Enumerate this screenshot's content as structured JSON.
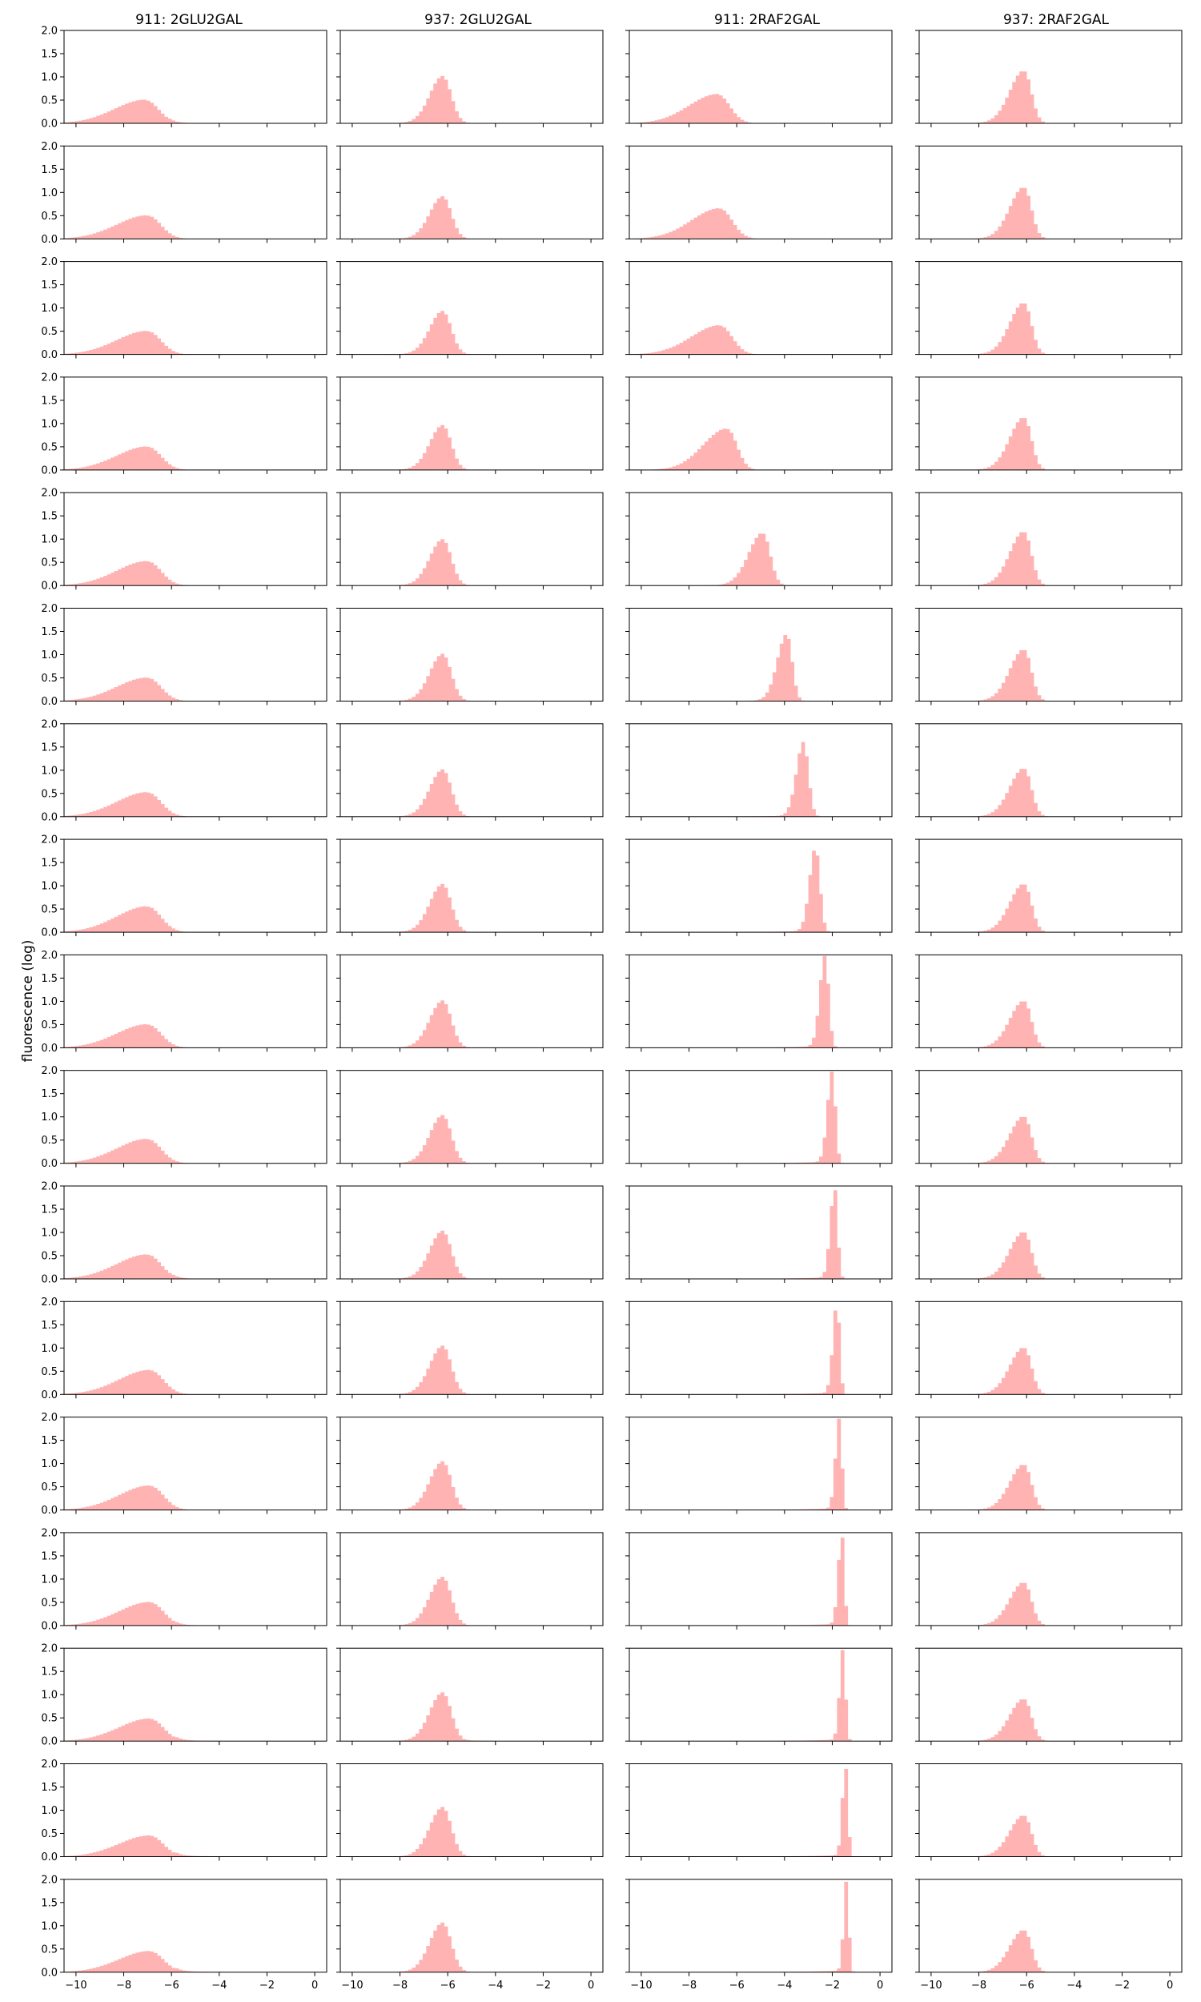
{
  "chart_data": {
    "type": "bar",
    "description_kind": "histogram grid",
    "rows": 17,
    "columns": [
      "911: 2GLU2GAL",
      "937: 2GLU2GAL",
      "911: 2RAF2GAL",
      "937: 2RAF2GAL"
    ],
    "ylabel": "fluorescence (log)",
    "xlim": [
      -10.5,
      0.5
    ],
    "ylim": [
      0,
      2.0
    ],
    "xticks": [
      -10,
      -8,
      -6,
      -4,
      -2,
      0
    ],
    "xtick_labels": [
      "−10",
      "−8",
      "−6",
      "−4",
      "−2",
      "0"
    ],
    "yticks": [
      0.0,
      0.5,
      1.0,
      1.5,
      2.0
    ],
    "ytick_labels": [
      "0.0",
      "0.5",
      "1.0",
      "1.5",
      "2.0"
    ],
    "bar_color": "#ffb3b3",
    "bin_width": 0.15,
    "distributions": [
      [
        {
          "mode": -7.1,
          "height": 0.5,
          "left": 1.3,
          "right": 0.55,
          "tail": 0.03
        },
        {
          "mode": -6.2,
          "height": 1.0,
          "left": 0.55,
          "right": 0.35,
          "tail": 0
        },
        {
          "mode": -6.8,
          "height": 0.62,
          "left": 1.2,
          "right": 0.5,
          "tail": 0
        },
        {
          "mode": -6.1,
          "height": 1.12,
          "left": 0.6,
          "right": 0.3,
          "tail": 0
        }
      ],
      [
        {
          "mode": -7.0,
          "height": 0.5,
          "left": 1.3,
          "right": 0.55,
          "tail": 0
        },
        {
          "mode": -6.2,
          "height": 0.9,
          "left": 0.55,
          "right": 0.35,
          "tail": 0
        },
        {
          "mode": -6.7,
          "height": 0.65,
          "left": 1.2,
          "right": 0.5,
          "tail": 0
        },
        {
          "mode": -6.1,
          "height": 1.1,
          "left": 0.6,
          "right": 0.3,
          "tail": 0
        }
      ],
      [
        {
          "mode": -7.0,
          "height": 0.5,
          "left": 1.3,
          "right": 0.55,
          "tail": 0
        },
        {
          "mode": -6.2,
          "height": 0.92,
          "left": 0.55,
          "right": 0.35,
          "tail": 0
        },
        {
          "mode": -6.7,
          "height": 0.62,
          "left": 1.2,
          "right": 0.5,
          "tail": 0
        },
        {
          "mode": -6.1,
          "height": 1.1,
          "left": 0.6,
          "right": 0.3,
          "tail": 0
        }
      ],
      [
        {
          "mode": -7.0,
          "height": 0.5,
          "left": 1.3,
          "right": 0.55,
          "tail": 0
        },
        {
          "mode": -6.2,
          "height": 0.95,
          "left": 0.55,
          "right": 0.35,
          "tail": 0
        },
        {
          "mode": -6.4,
          "height": 0.88,
          "left": 1.0,
          "right": 0.4,
          "tail": 0
        },
        {
          "mode": -6.1,
          "height": 1.12,
          "left": 0.6,
          "right": 0.3,
          "tail": 0
        }
      ],
      [
        {
          "mode": -7.0,
          "height": 0.52,
          "left": 1.3,
          "right": 0.55,
          "tail": 0
        },
        {
          "mode": -6.2,
          "height": 0.98,
          "left": 0.55,
          "right": 0.35,
          "tail": 0
        },
        {
          "mode": -4.9,
          "height": 1.12,
          "left": 0.6,
          "right": 0.3,
          "tail": 0
        },
        {
          "mode": -6.1,
          "height": 1.15,
          "left": 0.6,
          "right": 0.3,
          "tail": 0
        }
      ],
      [
        {
          "mode": -7.0,
          "height": 0.5,
          "left": 1.3,
          "right": 0.55,
          "tail": 0
        },
        {
          "mode": -6.2,
          "height": 1.0,
          "left": 0.55,
          "right": 0.35,
          "tail": 0
        },
        {
          "mode": -3.9,
          "height": 1.42,
          "left": 0.4,
          "right": 0.22,
          "tail": 0
        },
        {
          "mode": -6.1,
          "height": 1.1,
          "left": 0.6,
          "right": 0.3,
          "tail": 0
        }
      ],
      [
        {
          "mode": -7.0,
          "height": 0.52,
          "left": 1.3,
          "right": 0.55,
          "tail": 0
        },
        {
          "mode": -6.2,
          "height": 1.0,
          "left": 0.55,
          "right": 0.35,
          "tail": 0
        },
        {
          "mode": -3.2,
          "height": 1.58,
          "left": 0.3,
          "right": 0.2,
          "tail": 0
        },
        {
          "mode": -6.1,
          "height": 1.03,
          "left": 0.6,
          "right": 0.3,
          "tail": 0
        }
      ],
      [
        {
          "mode": -7.0,
          "height": 0.55,
          "left": 1.3,
          "right": 0.55,
          "tail": 0
        },
        {
          "mode": -6.2,
          "height": 1.02,
          "left": 0.55,
          "right": 0.35,
          "tail": 0
        },
        {
          "mode": -2.7,
          "height": 1.8,
          "left": 0.25,
          "right": 0.18,
          "tail": 0
        },
        {
          "mode": -6.1,
          "height": 1.03,
          "left": 0.6,
          "right": 0.3,
          "tail": 0
        }
      ],
      [
        {
          "mode": -7.0,
          "height": 0.5,
          "left": 1.3,
          "right": 0.55,
          "tail": 0
        },
        {
          "mode": -6.2,
          "height": 1.0,
          "left": 0.55,
          "right": 0.35,
          "tail": 0
        },
        {
          "mode": -2.3,
          "height": 1.95,
          "left": 0.22,
          "right": 0.15,
          "tail": 0
        },
        {
          "mode": -6.1,
          "height": 1.0,
          "left": 0.6,
          "right": 0.3,
          "tail": 0
        }
      ],
      [
        {
          "mode": -7.0,
          "height": 0.52,
          "left": 1.3,
          "right": 0.55,
          "tail": 0
        },
        {
          "mode": -6.2,
          "height": 1.02,
          "left": 0.55,
          "right": 0.35,
          "tail": 0
        },
        {
          "mode": -2.0,
          "height": 1.95,
          "left": 0.2,
          "right": 0.13,
          "tail": 0
        },
        {
          "mode": -6.1,
          "height": 1.0,
          "left": 0.6,
          "right": 0.3,
          "tail": 0
        }
      ],
      [
        {
          "mode": -7.0,
          "height": 0.52,
          "left": 1.3,
          "right": 0.55,
          "tail": 0.03
        },
        {
          "mode": -6.2,
          "height": 1.02,
          "left": 0.55,
          "right": 0.35,
          "tail": 0
        },
        {
          "mode": -1.9,
          "height": 1.95,
          "left": 0.18,
          "right": 0.12,
          "tail": 0
        },
        {
          "mode": -6.1,
          "height": 1.0,
          "left": 0.6,
          "right": 0.3,
          "tail": 0
        }
      ],
      [
        {
          "mode": -6.9,
          "height": 0.52,
          "left": 1.3,
          "right": 0.55,
          "tail": 0
        },
        {
          "mode": -6.2,
          "height": 1.03,
          "left": 0.55,
          "right": 0.35,
          "tail": 0
        },
        {
          "mode": -1.8,
          "height": 1.95,
          "left": 0.17,
          "right": 0.11,
          "tail": 0
        },
        {
          "mode": -6.1,
          "height": 1.0,
          "left": 0.6,
          "right": 0.3,
          "tail": 0
        }
      ],
      [
        {
          "mode": -6.9,
          "height": 0.52,
          "left": 1.3,
          "right": 0.55,
          "tail": 0
        },
        {
          "mode": -6.2,
          "height": 1.03,
          "left": 0.55,
          "right": 0.35,
          "tail": 0
        },
        {
          "mode": -1.7,
          "height": 1.95,
          "left": 0.16,
          "right": 0.1,
          "tail": 0
        },
        {
          "mode": -6.1,
          "height": 0.97,
          "left": 0.6,
          "right": 0.3,
          "tail": 0
        }
      ],
      [
        {
          "mode": -6.9,
          "height": 0.5,
          "left": 1.3,
          "right": 0.55,
          "tail": 0.03
        },
        {
          "mode": -6.2,
          "height": 1.03,
          "left": 0.55,
          "right": 0.35,
          "tail": 0
        },
        {
          "mode": -1.6,
          "height": 1.95,
          "left": 0.15,
          "right": 0.1,
          "tail": 0
        },
        {
          "mode": -6.1,
          "height": 0.92,
          "left": 0.6,
          "right": 0.3,
          "tail": 0
        }
      ],
      [
        {
          "mode": -6.9,
          "height": 0.48,
          "left": 1.3,
          "right": 0.55,
          "tail": 0.06
        },
        {
          "mode": -6.2,
          "height": 1.03,
          "left": 0.55,
          "right": 0.35,
          "tail": 0.03
        },
        {
          "mode": -1.55,
          "height": 1.95,
          "left": 0.14,
          "right": 0.1,
          "tail": 0
        },
        {
          "mode": -6.1,
          "height": 0.9,
          "left": 0.6,
          "right": 0.3,
          "tail": 0
        }
      ],
      [
        {
          "mode": -6.9,
          "height": 0.45,
          "left": 1.3,
          "right": 0.55,
          "tail": 0.07
        },
        {
          "mode": -6.2,
          "height": 1.05,
          "left": 0.55,
          "right": 0.35,
          "tail": 0
        },
        {
          "mode": -1.45,
          "height": 1.95,
          "left": 0.13,
          "right": 0.1,
          "tail": 0
        },
        {
          "mode": -6.1,
          "height": 0.88,
          "left": 0.6,
          "right": 0.3,
          "tail": 0
        }
      ],
      [
        {
          "mode": -6.9,
          "height": 0.45,
          "left": 1.3,
          "right": 0.55,
          "tail": 0.07
        },
        {
          "mode": -6.2,
          "height": 1.05,
          "left": 0.55,
          "right": 0.35,
          "tail": 0
        },
        {
          "mode": -1.4,
          "height": 1.95,
          "left": 0.12,
          "right": 0.09,
          "tail": 0
        },
        {
          "mode": -6.1,
          "height": 0.9,
          "left": 0.6,
          "right": 0.3,
          "tail": 0
        }
      ]
    ]
  }
}
